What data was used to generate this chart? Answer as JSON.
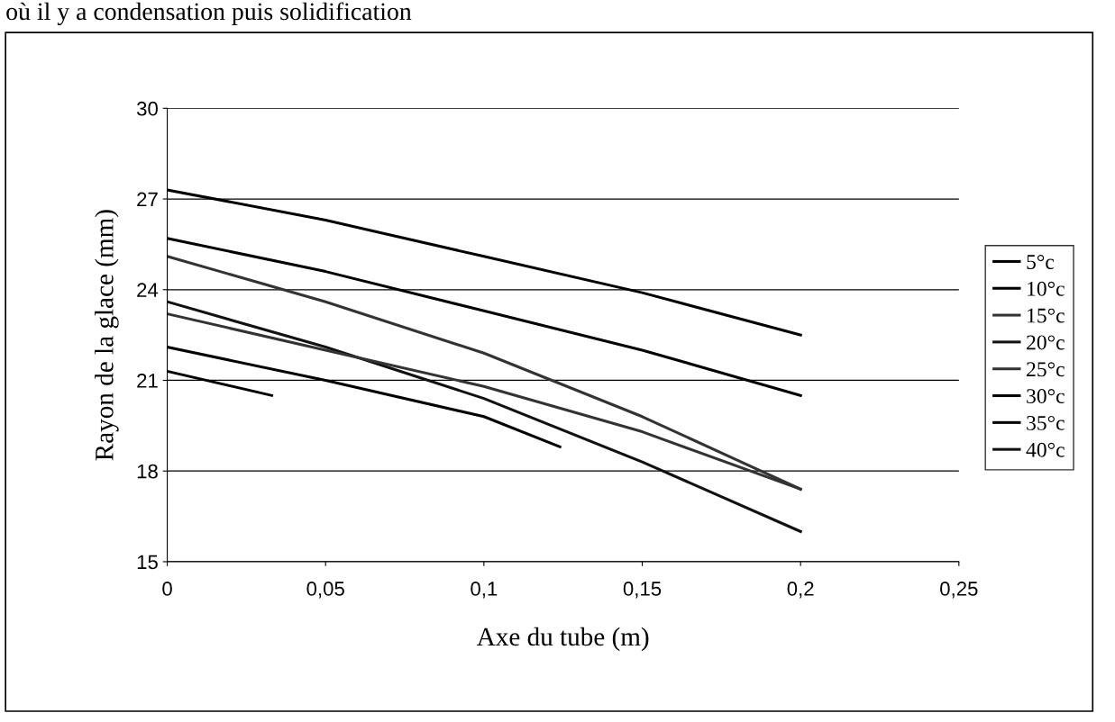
{
  "chart_data": {
    "type": "line",
    "xlabel": "Axe du tube (m)",
    "ylabel": "Rayon de la glace (mm)",
    "annotations": [
      "où il y a condensation puis solidification"
    ],
    "xlim": [
      0,
      0.25
    ],
    "xticks": [
      0,
      {
        "value": 0.05,
        "label": "0,05"
      },
      {
        "value": 0.1,
        "label": "0,1"
      },
      {
        "value": 0.15,
        "label": "0,15"
      },
      {
        "value": 0.2,
        "label": "0,2"
      },
      {
        "value": 0.25,
        "label": "0,25"
      }
    ],
    "ylim": [
      15,
      30
    ],
    "yticks": [
      15,
      18,
      21,
      24,
      27,
      30
    ],
    "grid": "y",
    "legend": "right",
    "marker": "none",
    "line_style": "solid",
    "series": [
      {
        "name": "5°c",
        "color": "#000000",
        "x": [
          0,
          0.05,
          0.1,
          0.15,
          0.2
        ],
        "values": [
          27.3,
          26.3,
          25.1,
          23.9,
          22.5
        ]
      },
      {
        "name": "10°c",
        "color": "#000000",
        "x": [
          0,
          0.05,
          0.1,
          0.15,
          0.2
        ],
        "values": [
          25.7,
          24.6,
          23.3,
          22.0,
          20.5
        ]
      },
      {
        "name": "15°c",
        "color": "#333333",
        "x": [
          0,
          0.05,
          0.1,
          0.15,
          0.2
        ],
        "values": [
          25.1,
          23.6,
          21.9,
          19.8,
          17.4
        ]
      },
      {
        "name": "20°c",
        "color": "#111111",
        "x": [
          0,
          0.05,
          0.1,
          0.15,
          0.2
        ],
        "values": [
          23.6,
          22.1,
          20.4,
          18.3,
          16.0
        ]
      },
      {
        "name": "25°c",
        "color": "#333333",
        "x": [
          0,
          0.05,
          0.1,
          0.15,
          0.2
        ],
        "values": [
          23.2,
          22.0,
          20.8,
          19.3,
          17.4
        ]
      },
      {
        "name": "30°c",
        "color": "#000000",
        "x": [
          0,
          0.05,
          0.1,
          0.124
        ],
        "values": [
          22.1,
          21.0,
          19.8,
          18.8
        ]
      },
      {
        "name": "35°c",
        "color": "#000000",
        "x": [
          0,
          0.033
        ],
        "values": [
          21.3,
          20.5
        ]
      },
      {
        "name": "40°c",
        "color": "#111111"
      }
    ]
  }
}
